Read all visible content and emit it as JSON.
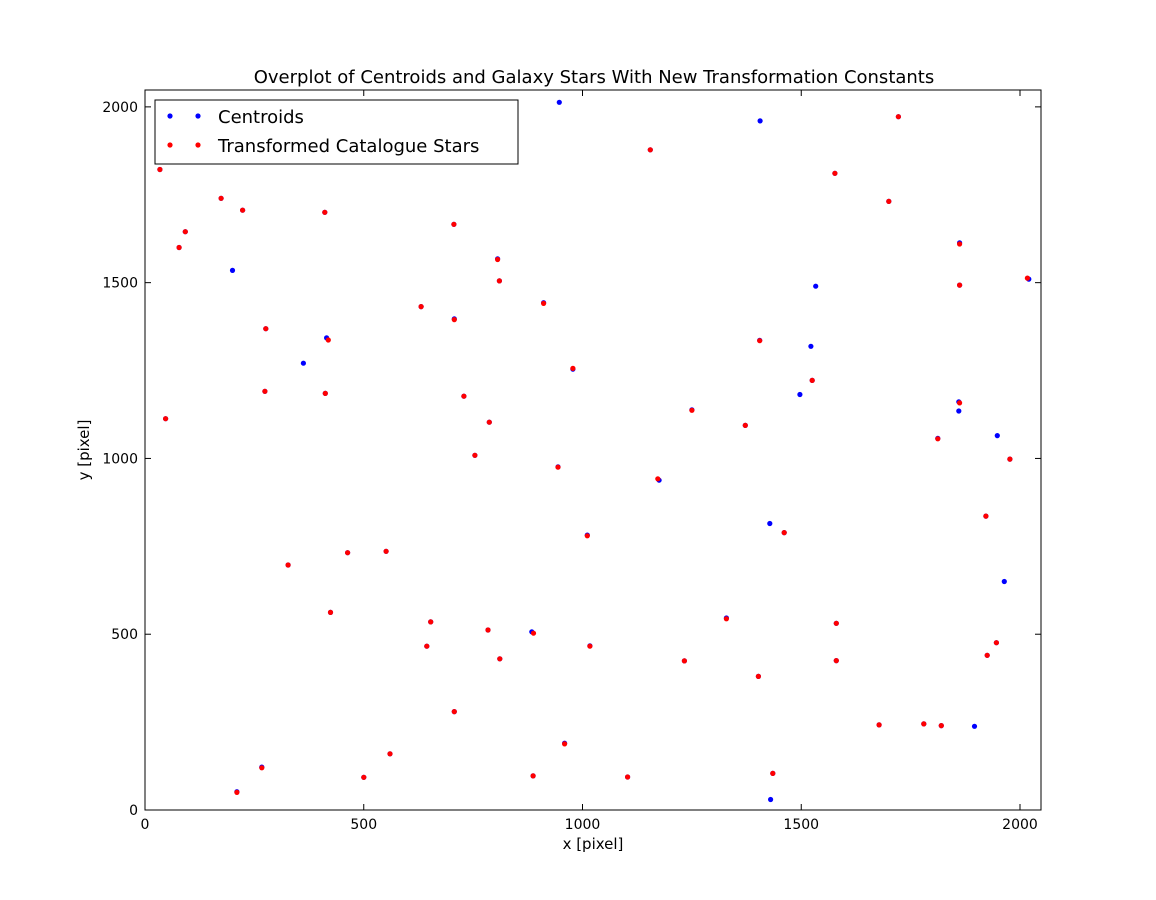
{
  "chart_data": {
    "type": "scatter",
    "title": "Overplot of Centroids and Galaxy Stars With New Transformation Constants",
    "xlabel": "x [pixel]",
    "ylabel": "y [pixel]",
    "xlim": [
      0,
      2048
    ],
    "ylim": [
      0,
      2048
    ],
    "xticks": [
      0,
      500,
      1000,
      1500,
      2000
    ],
    "yticks": [
      0,
      500,
      1000,
      1500,
      2000
    ],
    "grid": false,
    "legend_position": "upper-left",
    "legend": [
      "Centroids",
      "Transformed Catalogue Stars"
    ],
    "series": [
      {
        "name": "Centroids",
        "color": "#0000ff",
        "points": [
          [
            947,
            2013
          ],
          [
            1406,
            1960
          ],
          [
            1155,
            1878
          ],
          [
            1722,
            1972
          ],
          [
            34,
            1822
          ],
          [
            1577,
            1811
          ],
          [
            174,
            1740
          ],
          [
            1700,
            1731
          ],
          [
            223,
            1706
          ],
          [
            411,
            1700
          ],
          [
            706,
            1666
          ],
          [
            92,
            1645
          ],
          [
            1862,
            1613
          ],
          [
            78,
            1600
          ],
          [
            806,
            1568
          ],
          [
            200,
            1535
          ],
          [
            2020,
            1510
          ],
          [
            810,
            1505
          ],
          [
            1862,
            1493
          ],
          [
            1533,
            1490
          ],
          [
            911,
            1443
          ],
          [
            631,
            1432
          ],
          [
            707,
            1397
          ],
          [
            276,
            1369
          ],
          [
            415,
            1343
          ],
          [
            1405,
            1336
          ],
          [
            1522,
            1319
          ],
          [
            362,
            1271
          ],
          [
            978,
            1254
          ],
          [
            1525,
            1222
          ],
          [
            274,
            1191
          ],
          [
            1497,
            1182
          ],
          [
            412,
            1185
          ],
          [
            729,
            1177
          ],
          [
            1860,
            1161
          ],
          [
            1250,
            1138
          ],
          [
            1860,
            1135
          ],
          [
            47,
            1113
          ],
          [
            787,
            1103
          ],
          [
            1372,
            1094
          ],
          [
            1812,
            1057
          ],
          [
            1948,
            1065
          ],
          [
            754,
            1009
          ],
          [
            1977,
            998
          ],
          [
            944,
            976
          ],
          [
            1175,
            938
          ],
          [
            1922,
            836
          ],
          [
            1428,
            815
          ],
          [
            1461,
            789
          ],
          [
            1011,
            782
          ],
          [
            463,
            732
          ],
          [
            551,
            736
          ],
          [
            327,
            697
          ],
          [
            1964,
            650
          ],
          [
            424,
            562
          ],
          [
            653,
            535
          ],
          [
            1329,
            546
          ],
          [
            1580,
            531
          ],
          [
            784,
            512
          ],
          [
            884,
            507
          ],
          [
            1017,
            467
          ],
          [
            1946,
            476
          ],
          [
            644,
            466
          ],
          [
            1233,
            424
          ],
          [
            811,
            430
          ],
          [
            1580,
            425
          ],
          [
            1925,
            440
          ],
          [
            1402,
            380
          ],
          [
            707,
            280
          ],
          [
            1678,
            242
          ],
          [
            1780,
            245
          ],
          [
            1820,
            240
          ],
          [
            1896,
            238
          ],
          [
            959,
            190
          ],
          [
            560,
            160
          ],
          [
            267,
            122
          ],
          [
            1435,
            104
          ],
          [
            500,
            93
          ],
          [
            887,
            97
          ],
          [
            1103,
            94
          ],
          [
            210,
            52
          ],
          [
            1430,
            30
          ]
        ]
      },
      {
        "name": "Transformed Catalogue Stars",
        "color": "#ff0000",
        "points": [
          [
            1155,
            1878
          ],
          [
            1722,
            1972
          ],
          [
            34,
            1822
          ],
          [
            1577,
            1811
          ],
          [
            174,
            1740
          ],
          [
            1700,
            1731
          ],
          [
            223,
            1706
          ],
          [
            411,
            1700
          ],
          [
            706,
            1666
          ],
          [
            92,
            1645
          ],
          [
            1862,
            1610
          ],
          [
            78,
            1600
          ],
          [
            806,
            1566
          ],
          [
            2017,
            1513
          ],
          [
            810,
            1505
          ],
          [
            1862,
            1493
          ],
          [
            911,
            1441
          ],
          [
            631,
            1432
          ],
          [
            707,
            1395
          ],
          [
            276,
            1369
          ],
          [
            419,
            1337
          ],
          [
            1405,
            1335
          ],
          [
            978,
            1256
          ],
          [
            1525,
            1222
          ],
          [
            274,
            1191
          ],
          [
            412,
            1185
          ],
          [
            729,
            1177
          ],
          [
            1862,
            1158
          ],
          [
            1250,
            1137
          ],
          [
            47,
            1113
          ],
          [
            787,
            1103
          ],
          [
            1372,
            1094
          ],
          [
            1812,
            1056
          ],
          [
            754,
            1009
          ],
          [
            1977,
            998
          ],
          [
            944,
            975
          ],
          [
            1172,
            942
          ],
          [
            1922,
            836
          ],
          [
            1461,
            789
          ],
          [
            1011,
            780
          ],
          [
            463,
            732
          ],
          [
            551,
            736
          ],
          [
            327,
            697
          ],
          [
            424,
            562
          ],
          [
            653,
            535
          ],
          [
            1329,
            544
          ],
          [
            1580,
            531
          ],
          [
            784,
            512
          ],
          [
            888,
            503
          ],
          [
            1017,
            466
          ],
          [
            1946,
            476
          ],
          [
            644,
            466
          ],
          [
            1233,
            424
          ],
          [
            811,
            430
          ],
          [
            1580,
            425
          ],
          [
            1925,
            440
          ],
          [
            1402,
            380
          ],
          [
            707,
            280
          ],
          [
            1678,
            242
          ],
          [
            1780,
            245
          ],
          [
            1820,
            240
          ],
          [
            959,
            188
          ],
          [
            560,
            160
          ],
          [
            267,
            120
          ],
          [
            1435,
            104
          ],
          [
            500,
            93
          ],
          [
            887,
            97
          ],
          [
            1103,
            94
          ],
          [
            210,
            50
          ]
        ]
      }
    ]
  }
}
